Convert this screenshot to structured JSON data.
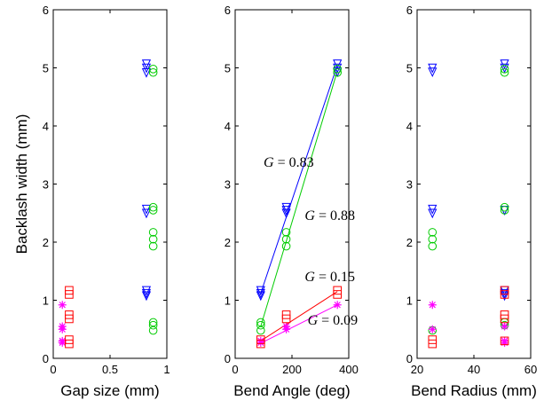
{
  "chart_data": [
    {
      "type": "scatter",
      "title": "",
      "xlabel": "Gap size (mm)",
      "ylabel": "Backlash width (mm)",
      "xlim": [
        0,
        1
      ],
      "ylim": [
        0,
        6
      ],
      "xticks": [
        "0",
        "0.5",
        "1"
      ],
      "yticks": [
        "0",
        "1",
        "2",
        "3",
        "4",
        "5",
        "6"
      ],
      "grid": false,
      "series": [
        {
          "marker": "triangle-down",
          "color": "#0000ff",
          "x": [
            0.82,
            0.82,
            0.82,
            0.82,
            0.82,
            0.82,
            0.82,
            0.82
          ],
          "y": [
            5.07,
            5.0,
            4.92,
            2.57,
            2.5,
            1.17,
            1.12,
            1.08
          ]
        },
        {
          "marker": "circle",
          "color": "#00cc00",
          "x": [
            0.88,
            0.88,
            0.88,
            0.88,
            0.88,
            0.88,
            0.88,
            0.88,
            0.88,
            0.88
          ],
          "y": [
            4.98,
            4.92,
            2.6,
            2.55,
            2.17,
            2.05,
            1.93,
            0.62,
            0.57,
            0.48
          ]
        },
        {
          "marker": "star",
          "color": "#ff00ff",
          "x": [
            0.08,
            0.08,
            0.08,
            0.08,
            0.08
          ],
          "y": [
            0.92,
            0.55,
            0.5,
            0.3,
            0.27
          ]
        },
        {
          "marker": "square",
          "color": "#ff0000",
          "x": [
            0.14,
            0.14,
            0.14,
            0.14,
            0.14,
            0.14
          ],
          "y": [
            1.17,
            1.1,
            0.75,
            0.68,
            0.32,
            0.25
          ]
        }
      ]
    },
    {
      "type": "scatter",
      "title": "",
      "xlabel": "Bend Angle (deg)",
      "ylabel": "",
      "xlim": [
        0,
        400
      ],
      "ylim": [
        0,
        6
      ],
      "xticks": [
        "0",
        "200",
        "400"
      ],
      "yticks": [
        "0",
        "1",
        "2",
        "3",
        "4",
        "5",
        "6"
      ],
      "grid": false,
      "series": [
        {
          "marker": "triangle-down",
          "color": "#0000ff",
          "x": [
            90,
            90,
            90,
            180,
            180,
            180,
            360,
            360,
            360
          ],
          "y": [
            1.17,
            1.12,
            1.08,
            2.6,
            2.55,
            2.5,
            5.07,
            5.0,
            4.93
          ]
        },
        {
          "marker": "circle",
          "color": "#00cc00",
          "x": [
            90,
            90,
            90,
            180,
            180,
            180,
            360,
            360
          ],
          "y": [
            0.62,
            0.57,
            0.48,
            2.17,
            2.05,
            1.93,
            4.98,
            4.92
          ]
        },
        {
          "marker": "star",
          "color": "#ff00ff",
          "x": [
            90,
            90,
            180,
            180,
            360
          ],
          "y": [
            0.3,
            0.27,
            0.55,
            0.5,
            0.92
          ]
        },
        {
          "marker": "square",
          "color": "#ff0000",
          "x": [
            90,
            90,
            180,
            180,
            360,
            360
          ],
          "y": [
            0.32,
            0.25,
            0.75,
            0.68,
            1.17,
            1.1
          ]
        }
      ],
      "fit_lines": [
        {
          "color": "#0000ff",
          "x": [
            90,
            360
          ],
          "y": [
            1.12,
            5.05
          ]
        },
        {
          "color": "#00cc00",
          "x": [
            90,
            360
          ],
          "y": [
            0.55,
            4.95
          ]
        },
        {
          "color": "#ff0000",
          "x": [
            90,
            360
          ],
          "y": [
            0.3,
            1.15
          ]
        },
        {
          "color": "#ff00ff",
          "x": [
            90,
            360
          ],
          "y": [
            0.26,
            0.92
          ]
        }
      ],
      "annotations": [
        {
          "prefix": "G",
          "text": " = 0.83",
          "x": 100,
          "y": 3.3
        },
        {
          "prefix": "G",
          "text": " = 0.88",
          "x": 245,
          "y": 2.38
        },
        {
          "prefix": "G",
          "text": " = 0.15",
          "x": 245,
          "y": 1.33
        },
        {
          "prefix": "G",
          "text": " = 0.09",
          "x": 255,
          "y": 0.58
        }
      ]
    },
    {
      "type": "scatter",
      "title": "",
      "xlabel": "Bend Radius (mm)",
      "ylabel": "",
      "xlim": [
        20,
        60
      ],
      "ylim": [
        0,
        6
      ],
      "xticks": [
        "20",
        "40",
        "60"
      ],
      "yticks": [
        "0",
        "1",
        "2",
        "3",
        "4",
        "5",
        "6"
      ],
      "grid": false,
      "series": [
        {
          "marker": "triangle-down",
          "color": "#0000ff",
          "x": [
            25.4,
            25.4,
            25.4,
            25.4,
            50.8,
            50.8,
            50.8,
            50.8,
            50.8,
            50.8
          ],
          "y": [
            5.0,
            4.93,
            2.57,
            2.5,
            5.07,
            5.0,
            2.55,
            1.17,
            1.12,
            1.08
          ]
        },
        {
          "marker": "circle",
          "color": "#00cc00",
          "x": [
            25.4,
            25.4,
            25.4,
            25.4,
            50.8,
            50.8,
            50.8,
            50.8,
            50.8,
            50.8
          ],
          "y": [
            2.17,
            2.05,
            1.93,
            0.48,
            4.98,
            4.92,
            2.6,
            2.55,
            0.62,
            0.57
          ]
        },
        {
          "marker": "star",
          "color": "#ff00ff",
          "x": [
            25.4,
            25.4,
            50.8,
            50.8,
            50.8
          ],
          "y": [
            0.92,
            0.5,
            0.55,
            0.3,
            0.27
          ]
        },
        {
          "marker": "square",
          "color": "#ff0000",
          "x": [
            25.4,
            25.4,
            50.8,
            50.8,
            50.8,
            50.8,
            50.8
          ],
          "y": [
            0.32,
            0.25,
            1.17,
            1.1,
            0.75,
            0.68,
            0.3
          ]
        }
      ]
    }
  ]
}
